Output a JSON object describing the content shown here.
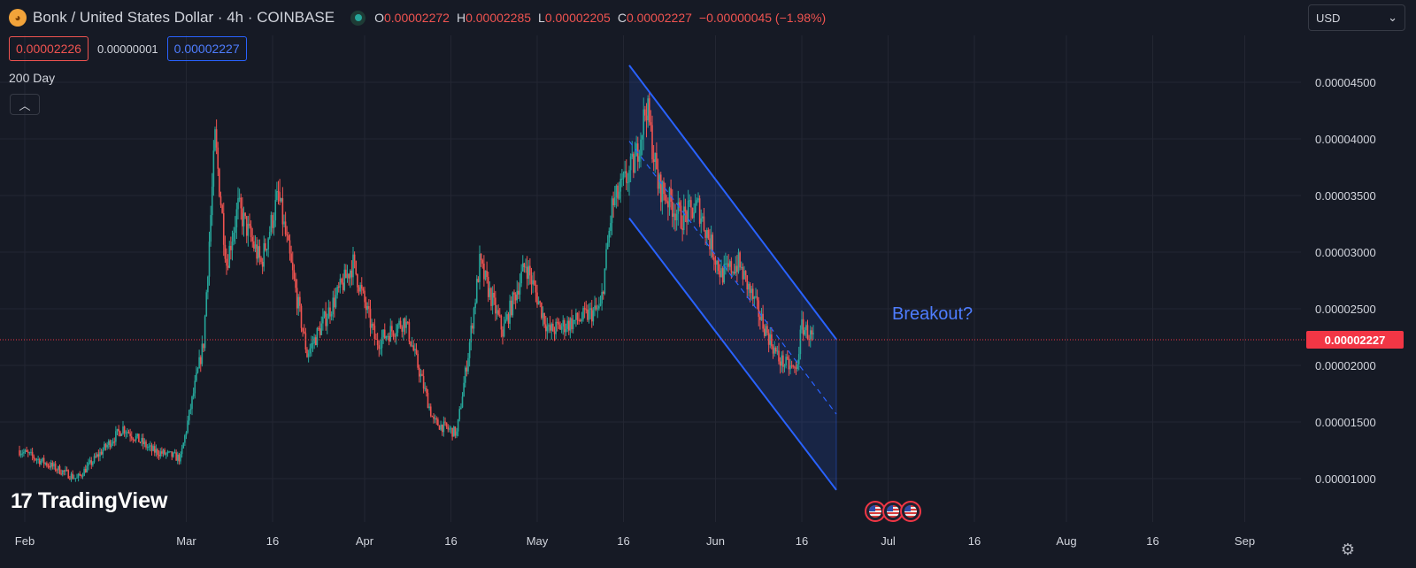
{
  "header": {
    "symbol_icon": "bonk-logo-icon",
    "title": "Bonk / United States Dollar · 4h · COINBASE",
    "ohlc": [
      {
        "k": "O",
        "v": "0.00002272"
      },
      {
        "k": "H",
        "v": "0.00002285"
      },
      {
        "k": "L",
        "v": "0.00002205"
      },
      {
        "k": "C",
        "v": "0.00002227"
      }
    ],
    "change": "−0.00000045 (−1.98%)",
    "sell_price": "0.00002226",
    "spread": "0.00000001",
    "buy_price": "0.00002227",
    "currency": "USD",
    "currency_icon": "chevron-down-icon"
  },
  "indicator": {
    "label": "200 Day",
    "collapse_icon": "chevron-up-icon"
  },
  "last_price_label": "0.00002227",
  "annotation": "Breakout?",
  "branding": {
    "name": "TradingView",
    "mark": "17"
  },
  "settings_icon": "gear-icon",
  "colors": {
    "up": "#26a69a",
    "down": "#ef5350",
    "channel": "#2962ff",
    "channel_fill": "#2962ff",
    "background": "#161a25",
    "grid": "#232632"
  },
  "chart_data": {
    "type": "candlestick",
    "title": "Bonk / United States Dollar · 4h · COINBASE",
    "xlabel": "",
    "ylabel": "",
    "ylim": [
      5.7e-06,
      4.7e-05
    ],
    "y_ticks": [
      "0.00001000",
      "0.00001500",
      "0.00002000",
      "0.00002500",
      "0.00003000",
      "0.00003500",
      "0.00004000",
      "0.00004500"
    ],
    "x_ticks": [
      "Feb",
      "Mar",
      "16",
      "Apr",
      "16",
      "May",
      "16",
      "Jun",
      "16",
      "Jul",
      "16",
      "Aug",
      "16",
      "Sep"
    ],
    "last_price": 2.227e-05,
    "price_path": [
      {
        "d": 0,
        "p": 1.25e-05
      },
      {
        "d": 10,
        "p": 1e-05
      },
      {
        "d": 18,
        "p": 1.45e-05
      },
      {
        "d": 23,
        "p": 1.25e-05
      },
      {
        "d": 28,
        "p": 1.18e-05
      },
      {
        "d": 32,
        "p": 2.2e-05
      },
      {
        "d": 34,
        "p": 4e-05
      },
      {
        "d": 36,
        "p": 2.9e-05
      },
      {
        "d": 38,
        "p": 3.4e-05
      },
      {
        "d": 42,
        "p": 2.9e-05
      },
      {
        "d": 45,
        "p": 3.5e-05
      },
      {
        "d": 50,
        "p": 2.1e-05
      },
      {
        "d": 55,
        "p": 2.6e-05
      },
      {
        "d": 58,
        "p": 2.9e-05
      },
      {
        "d": 62,
        "p": 2.2e-05
      },
      {
        "d": 67,
        "p": 2.4e-05
      },
      {
        "d": 72,
        "p": 1.5e-05
      },
      {
        "d": 76,
        "p": 1.4e-05
      },
      {
        "d": 78,
        "p": 2.1e-05
      },
      {
        "d": 80,
        "p": 2.9e-05
      },
      {
        "d": 84,
        "p": 2.3e-05
      },
      {
        "d": 88,
        "p": 2.9e-05
      },
      {
        "d": 92,
        "p": 2.3e-05
      },
      {
        "d": 97,
        "p": 2.4e-05
      },
      {
        "d": 101,
        "p": 2.5e-05
      },
      {
        "d": 103,
        "p": 3.4e-05
      },
      {
        "d": 107,
        "p": 3.8e-05
      },
      {
        "d": 109,
        "p": 4.3e-05
      },
      {
        "d": 111,
        "p": 3.6e-05
      },
      {
        "d": 115,
        "p": 3.3e-05
      },
      {
        "d": 118,
        "p": 3.4e-05
      },
      {
        "d": 122,
        "p": 2.8e-05
      },
      {
        "d": 125,
        "p": 2.9e-05
      },
      {
        "d": 129,
        "p": 2.4e-05
      },
      {
        "d": 132,
        "p": 2.05e-05
      },
      {
        "d": 135,
        "p": 1.95e-05
      },
      {
        "d": 136,
        "p": 2.35e-05
      },
      {
        "d": 138,
        "p": 2.23e-05
      }
    ],
    "channel": {
      "start_day": 106,
      "end_day": 142,
      "upper_start": 4.65e-05,
      "upper_end": 2.23e-05,
      "lower_start": 3.3e-05,
      "lower_end": 9e-06,
      "mid_start": 3.98e-05,
      "mid_end": 1.57e-05
    }
  }
}
